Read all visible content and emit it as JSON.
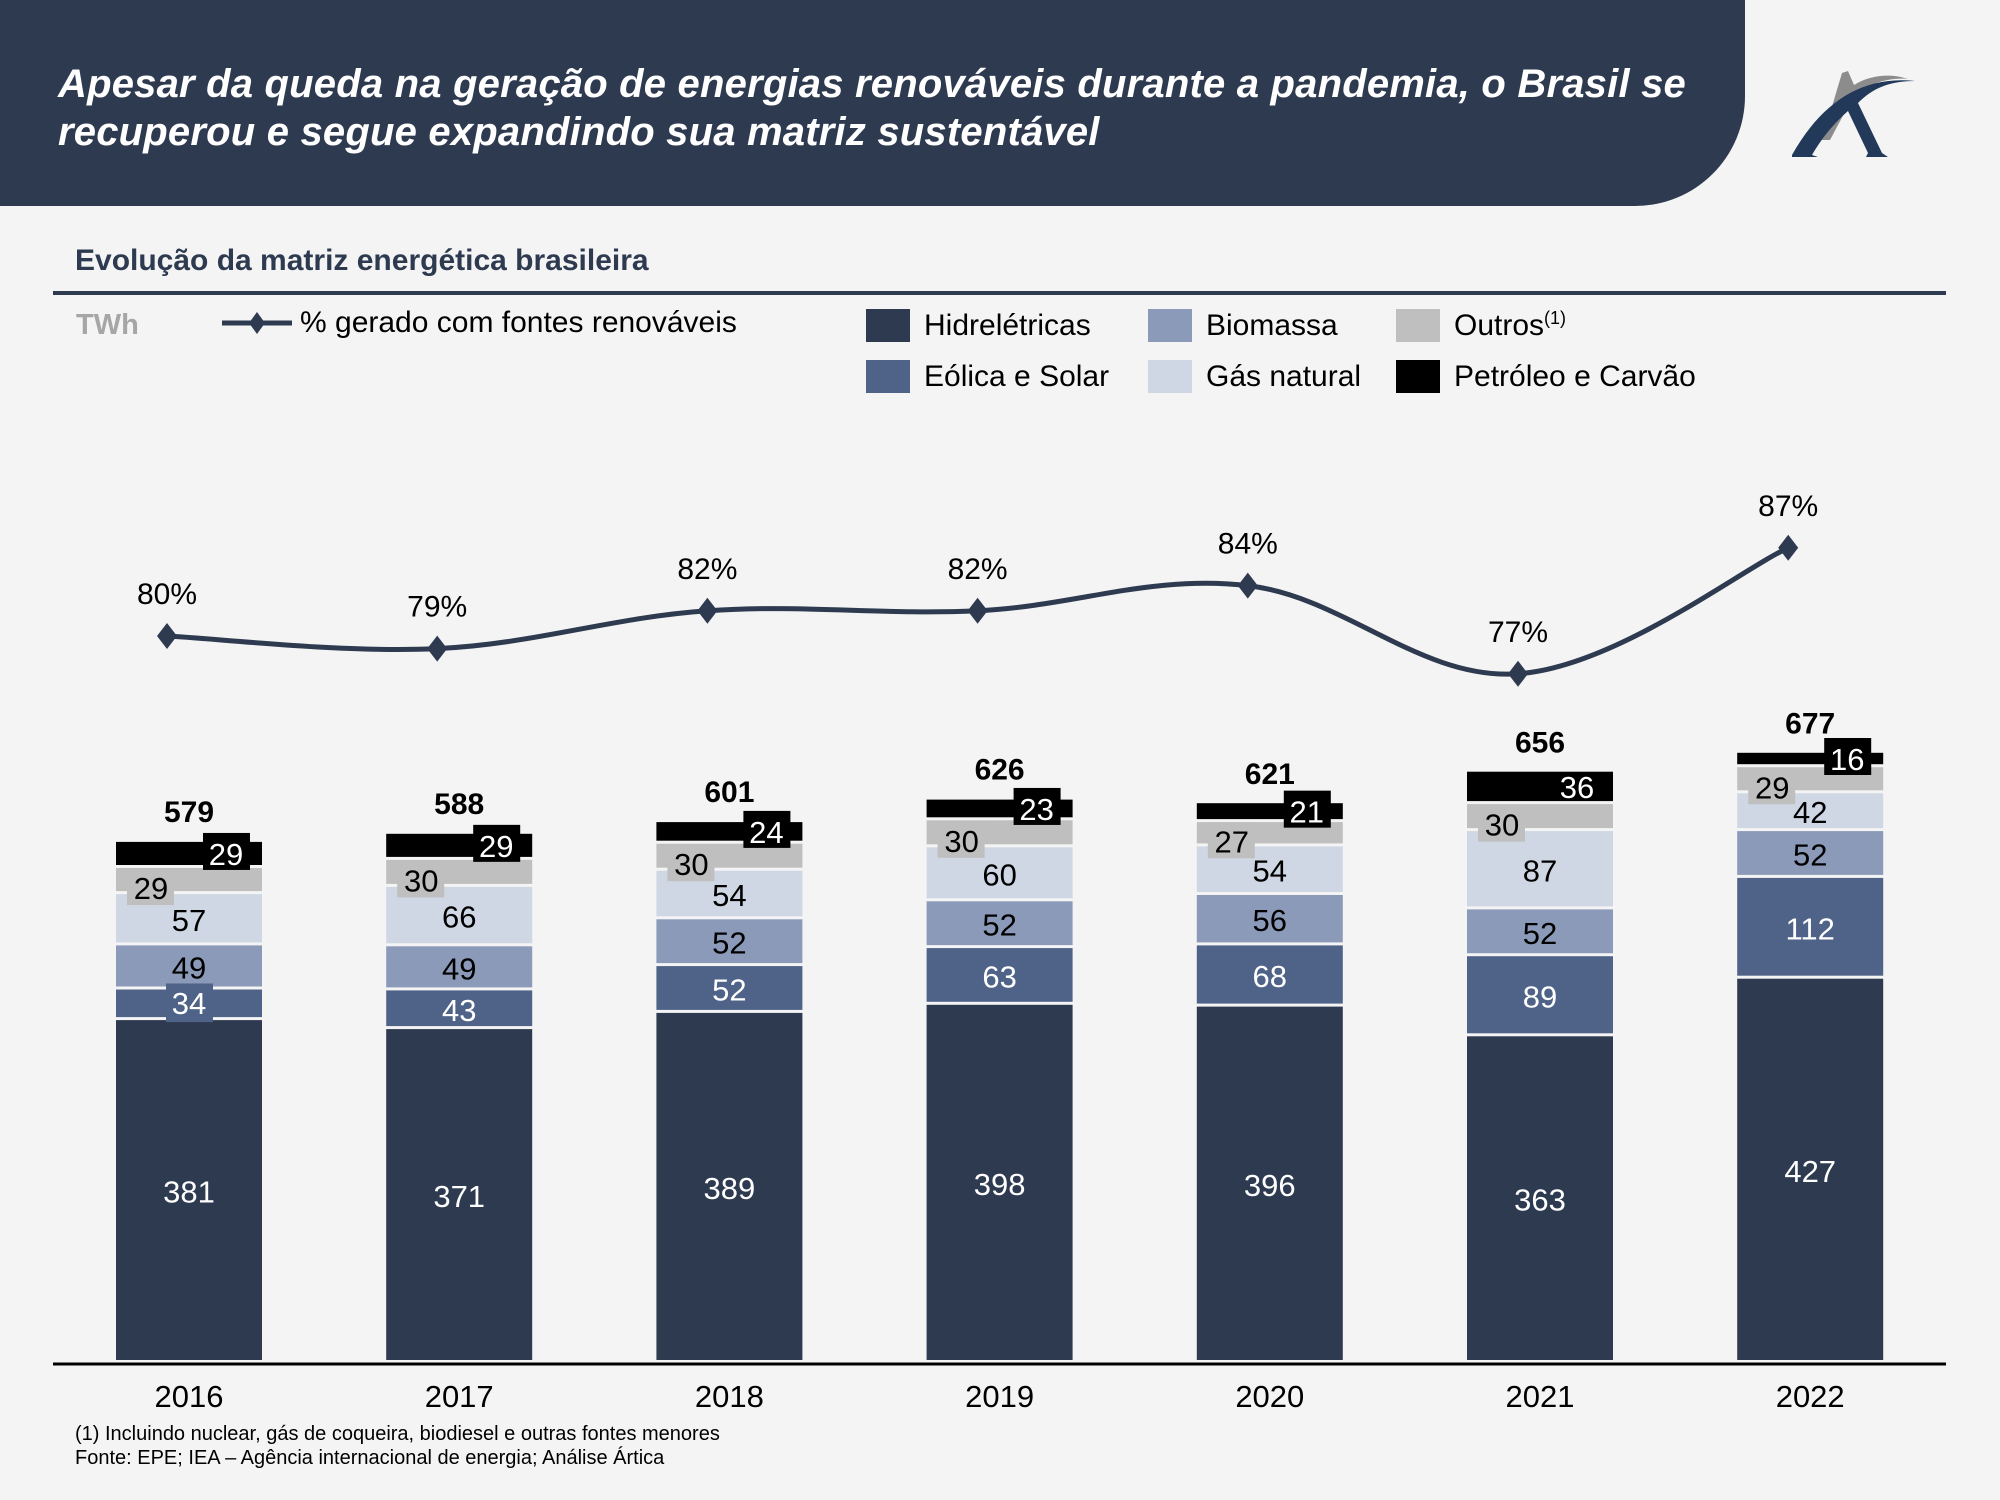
{
  "header": {
    "title": "Apesar da queda na geração de energias renováveis durante a pandemia, o Brasil se recuperou e segue expandindo sua matriz sustentável",
    "logo_icon": "artica-a-logo-icon"
  },
  "subtitle": "Evolução da matriz energética brasileira",
  "unit": "TWh",
  "line_legend": "% gerado com fontes renováveis",
  "legend": [
    {
      "key": "hidro",
      "label": "Hidrelétricas",
      "sup": "",
      "color": "#2e3a50"
    },
    {
      "key": "biomassa",
      "label": "Biomassa",
      "sup": "",
      "color": "#8a9ab8"
    },
    {
      "key": "outros",
      "label": "Outros",
      "sup": "(1)",
      "color": "#bfbfbf"
    },
    {
      "key": "eolica",
      "label": "Eólica e Solar",
      "sup": "",
      "color": "#4f6388"
    },
    {
      "key": "gas",
      "label": "Gás natural",
      "sup": "",
      "color": "#cfd7e4"
    },
    {
      "key": "petroleo",
      "label": "Petróleo e Carvão",
      "sup": "",
      "color": "#000000"
    }
  ],
  "chart_data": {
    "type": "bar",
    "stacked": true,
    "title": "Evolução da matriz energética brasileira",
    "ylabel": "TWh",
    "xlabel": "",
    "categories": [
      "2016",
      "2017",
      "2018",
      "2019",
      "2020",
      "2021",
      "2022"
    ],
    "series": [
      {
        "name": "Hidrelétricas",
        "color": "#2e3a50",
        "label_color": "#ffffff",
        "values": [
          381,
          371,
          389,
          398,
          396,
          363,
          427
        ]
      },
      {
        "name": "Eólica e Solar",
        "color": "#4f6388",
        "label_color": "#ffffff",
        "values": [
          34,
          43,
          52,
          63,
          68,
          89,
          112
        ]
      },
      {
        "name": "Biomassa",
        "color": "#8a9ab8",
        "label_color": "#000000",
        "values": [
          49,
          49,
          52,
          52,
          56,
          52,
          52
        ]
      },
      {
        "name": "Gás natural",
        "color": "#cfd7e4",
        "label_color": "#000000",
        "values": [
          57,
          66,
          54,
          60,
          54,
          87,
          42
        ]
      },
      {
        "name": "Outros(1)",
        "color": "#bfbfbf",
        "label_color": "#000000",
        "values": [
          29,
          30,
          30,
          30,
          27,
          30,
          29
        ]
      },
      {
        "name": "Petróleo e Carvão",
        "color": "#000000",
        "label_color": "#ffffff",
        "values": [
          29,
          29,
          24,
          23,
          21,
          36,
          16
        ]
      }
    ],
    "totals": [
      579,
      588,
      601,
      626,
      621,
      656,
      677
    ],
    "line_series": {
      "name": "% gerado com fontes renováveis",
      "color": "#2e3a50",
      "marker": "diamond",
      "values": [
        80,
        79,
        82,
        82,
        84,
        77,
        87
      ],
      "labels": [
        "80%",
        "79%",
        "82%",
        "82%",
        "84%",
        "77%",
        "87%"
      ]
    },
    "legend_position": "top",
    "grid": false
  },
  "footnotes": [
    "(1) Incluindo nuclear, gás de coqueira, biodiesel e outras fontes menores",
    "Fonte: EPE; IEA – Agência internacional de energia; Análise Ártica"
  ]
}
